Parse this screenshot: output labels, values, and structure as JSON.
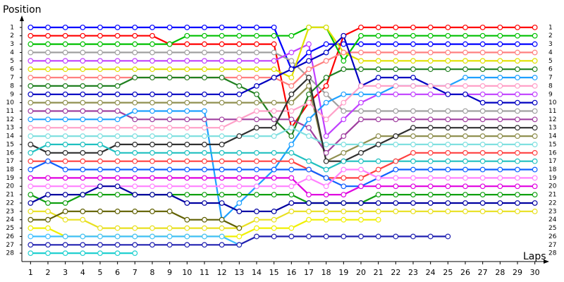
{
  "chart_data": {
    "type": "line",
    "y_label": "Position",
    "x_label": "Laps",
    "x": [
      1,
      2,
      3,
      4,
      5,
      6,
      7,
      8,
      9,
      10,
      11,
      12,
      13,
      14,
      15,
      16,
      17,
      18,
      19,
      20,
      21,
      22,
      23,
      24,
      25,
      26,
      27,
      28,
      29,
      30
    ],
    "xlim": [
      0.5,
      30.5
    ],
    "xticks": [
      1,
      2,
      3,
      4,
      5,
      6,
      7,
      8,
      9,
      10,
      11,
      12,
      13,
      14,
      15,
      16,
      17,
      18,
      19,
      20,
      21,
      22,
      23,
      24,
      25,
      26,
      27,
      28,
      29,
      30
    ],
    "ylim": [
      29,
      0
    ],
    "yticks": [
      1,
      2,
      3,
      4,
      5,
      6,
      7,
      8,
      9,
      10,
      11,
      12,
      13,
      14,
      15,
      16,
      17,
      18,
      19,
      20,
      21,
      22,
      23,
      24,
      25,
      26,
      27,
      28
    ],
    "series": [
      {
        "color": "#0000ff",
        "values": [
          1,
          1,
          1,
          1,
          1,
          1,
          1,
          1,
          1,
          1,
          1,
          1,
          1,
          1,
          1,
          6,
          4,
          3,
          3,
          3,
          3,
          3,
          3,
          3,
          3,
          3,
          3,
          3,
          3,
          3
        ]
      },
      {
        "color": "#ff0000",
        "values": [
          2,
          2,
          2,
          2,
          2,
          2,
          2,
          2,
          3,
          3,
          3,
          3,
          3,
          3,
          3,
          13,
          10,
          8,
          2,
          1,
          1,
          1,
          1,
          1,
          1,
          1,
          1,
          1,
          1,
          1
        ]
      },
      {
        "color": "#00c000",
        "values": [
          3,
          3,
          3,
          3,
          3,
          3,
          3,
          3,
          3,
          2,
          2,
          2,
          2,
          2,
          2,
          2,
          1,
          1,
          5,
          2,
          2,
          2,
          2,
          2,
          2,
          2,
          2,
          2,
          2,
          2
        ]
      },
      {
        "color": "#a0a0a0",
        "values": [
          4,
          4,
          4,
          4,
          4,
          4,
          4,
          4,
          4,
          4,
          4,
          4,
          4,
          4,
          4,
          5,
          7,
          9,
          11,
          11,
          11,
          11,
          11,
          11,
          11,
          11,
          11,
          11,
          11,
          11
        ]
      },
      {
        "color": "#c040ff",
        "values": [
          5,
          5,
          5,
          5,
          5,
          5,
          5,
          5,
          5,
          5,
          5,
          5,
          5,
          5,
          5,
          4,
          3,
          14,
          12,
          10,
          9,
          9,
          9,
          9,
          9,
          9,
          9,
          9,
          9,
          9
        ]
      },
      {
        "color": "#e0e000",
        "values": [
          6,
          6,
          6,
          6,
          6,
          6,
          6,
          6,
          6,
          6,
          6,
          6,
          6,
          6,
          6,
          7,
          1,
          1,
          4,
          5,
          5,
          5,
          5,
          5,
          5,
          5,
          5,
          5,
          5,
          5
        ]
      },
      {
        "color": "#ff8080",
        "values": [
          7,
          7,
          7,
          7,
          7,
          7,
          7,
          7,
          7,
          7,
          7,
          7,
          7,
          7,
          7,
          8,
          6,
          5,
          4,
          4,
          4,
          4,
          4,
          4,
          4,
          4,
          4,
          4,
          4,
          4
        ]
      },
      {
        "color": "#208020",
        "values": [
          8,
          8,
          8,
          8,
          8,
          8,
          7,
          7,
          7,
          7,
          7,
          7,
          8,
          9,
          12,
          14,
          9,
          7,
          6,
          6,
          6,
          6,
          6,
          6,
          6,
          6,
          6,
          6,
          6,
          6
        ]
      },
      {
        "color": "#0000c0",
        "values": [
          9,
          9,
          9,
          9,
          9,
          9,
          9,
          9,
          9,
          9,
          9,
          9,
          9,
          8,
          7,
          6,
          5,
          4,
          2,
          8,
          7,
          7,
          7,
          8,
          9,
          9,
          10,
          10,
          10,
          10
        ]
      },
      {
        "color": "#909050",
        "values": [
          10,
          10,
          10,
          10,
          10,
          10,
          10,
          10,
          10,
          10,
          10,
          10,
          10,
          10,
          10,
          10,
          8,
          17,
          16,
          15,
          14,
          14,
          14,
          14,
          14,
          14,
          14,
          14,
          14,
          14
        ]
      },
      {
        "color": "#a040a0",
        "values": [
          11,
          11,
          11,
          11,
          11,
          11,
          12,
          12,
          12,
          12,
          12,
          12,
          12,
          12,
          12,
          12,
          13,
          16,
          14,
          12,
          12,
          12,
          12,
          12,
          12,
          12,
          12,
          12,
          12,
          12
        ]
      },
      {
        "color": "#1ea0ff",
        "values": [
          12,
          12,
          12,
          12,
          12,
          12,
          11,
          11,
          11,
          11,
          11,
          24,
          22,
          20,
          18,
          15,
          12,
          10,
          9,
          9,
          9,
          8,
          8,
          8,
          8,
          7,
          7,
          7,
          7,
          7
        ]
      },
      {
        "color": "#ffa0c8",
        "values": [
          13,
          13,
          13,
          13,
          13,
          13,
          13,
          13,
          13,
          13,
          13,
          13,
          12,
          11,
          11,
          11,
          10,
          12,
          10,
          8,
          8,
          8,
          8,
          8,
          8,
          8,
          8,
          8,
          8,
          8
        ]
      },
      {
        "color": "#80e0e0",
        "values": [
          14,
          14,
          14,
          14,
          14,
          14,
          14,
          14,
          14,
          14,
          14,
          14,
          14,
          14,
          14,
          13,
          14,
          15,
          15,
          15,
          15,
          15,
          15,
          15,
          15,
          15,
          15,
          15,
          15,
          15
        ]
      },
      {
        "color": "#303030",
        "values": [
          15,
          16,
          16,
          16,
          16,
          15,
          15,
          15,
          15,
          15,
          15,
          15,
          14,
          13,
          13,
          9,
          7,
          17,
          17,
          16,
          15,
          14,
          13,
          13,
          13,
          13,
          13,
          13,
          13,
          13
        ]
      },
      {
        "color": "#20c0c0",
        "values": [
          16,
          15,
          15,
          15,
          15,
          16,
          16,
          16,
          16,
          16,
          16,
          16,
          16,
          16,
          16,
          16,
          17,
          18,
          17,
          17,
          17,
          17,
          17,
          17,
          17,
          17,
          17,
          17,
          17,
          17
        ]
      },
      {
        "color": "#ff4040",
        "values": [
          17,
          17,
          17,
          17,
          17,
          17,
          17,
          17,
          17,
          17,
          17,
          17,
          17,
          17,
          17,
          17,
          18,
          19,
          19,
          19,
          18,
          17,
          16,
          16,
          16,
          16,
          16,
          16,
          16,
          16
        ]
      },
      {
        "color": "#1060ff",
        "values": [
          18,
          17,
          18,
          18,
          18,
          18,
          18,
          18,
          18,
          18,
          18,
          18,
          18,
          18,
          18,
          18,
          18,
          19,
          20,
          20,
          19,
          18,
          18,
          18,
          18,
          18,
          18,
          18,
          18,
          18
        ]
      },
      {
        "color": "#e000e0",
        "values": [
          19,
          19,
          19,
          19,
          19,
          19,
          19,
          19,
          19,
          19,
          19,
          19,
          19,
          19,
          19,
          19,
          21,
          21,
          21,
          20,
          20,
          20,
          20,
          20,
          20,
          20,
          20,
          20,
          20,
          20
        ]
      },
      {
        "color": "#ff80ff",
        "values": [
          20,
          20,
          20,
          20,
          20,
          20,
          20,
          20,
          20,
          20,
          20,
          20,
          20,
          20,
          20,
          20,
          19,
          20,
          18,
          18,
          19,
          19,
          19,
          19,
          19,
          19,
          19,
          19,
          19,
          19
        ]
      },
      {
        "color": "#10a010",
        "values": [
          21,
          22,
          22,
          21,
          21,
          21,
          21,
          21,
          21,
          21,
          21,
          21,
          21,
          21,
          21,
          21,
          22,
          22,
          22,
          22,
          21,
          21,
          21,
          21,
          21,
          21,
          21,
          21,
          21,
          21
        ]
      },
      {
        "color": "#0000a0",
        "values": [
          22,
          21,
          21,
          21,
          20,
          20,
          21,
          21,
          21,
          22,
          22,
          22,
          23,
          23,
          23,
          22,
          22,
          22,
          22,
          22,
          22,
          22,
          22,
          22,
          22,
          22,
          22,
          22,
          22,
          22
        ]
      },
      {
        "color": "#e8e020",
        "values": [
          23,
          23,
          24,
          24,
          25,
          25,
          25,
          25,
          25,
          25,
          25,
          25,
          25,
          24,
          24,
          23,
          23,
          23,
          23,
          23,
          23,
          23,
          23,
          23,
          23,
          23,
          23,
          23,
          23,
          23
        ]
      },
      {
        "color": "#606000",
        "values": [
          24,
          24,
          23,
          23,
          23,
          23,
          23,
          23,
          23,
          24,
          24,
          24,
          25,
          null,
          null,
          null,
          null,
          null,
          null,
          null,
          null,
          null,
          null,
          null,
          null,
          null,
          null,
          null,
          null,
          null
        ]
      },
      {
        "color": "#f0f000",
        "values": [
          25,
          25,
          26,
          26,
          26,
          26,
          26,
          26,
          26,
          26,
          26,
          26,
          26,
          25,
          25,
          25,
          24,
          24,
          24,
          24,
          24,
          null,
          null,
          null,
          null,
          null,
          null,
          null,
          null,
          null
        ]
      },
      {
        "color": "#40c0ff",
        "values": [
          26,
          26,
          26,
          26,
          26,
          26,
          26,
          26,
          26,
          26,
          26,
          26,
          27,
          null,
          null,
          null,
          null,
          null,
          null,
          null,
          null,
          null,
          null,
          null,
          null,
          null,
          null,
          null,
          null,
          null
        ]
      },
      {
        "color": "#2020b0",
        "values": [
          27,
          27,
          27,
          27,
          27,
          27,
          27,
          27,
          27,
          27,
          27,
          27,
          27,
          26,
          26,
          26,
          26,
          26,
          26,
          26,
          26,
          26,
          26,
          26,
          26,
          null,
          null,
          null,
          null,
          null
        ]
      },
      {
        "color": "#20d0d0",
        "values": [
          28,
          28,
          28,
          28,
          28,
          28,
          28,
          null,
          null,
          null,
          null,
          null,
          null,
          null,
          null,
          null,
          null,
          null,
          null,
          null,
          null,
          null,
          null,
          null,
          null,
          null,
          null,
          null,
          null,
          null
        ]
      }
    ]
  }
}
